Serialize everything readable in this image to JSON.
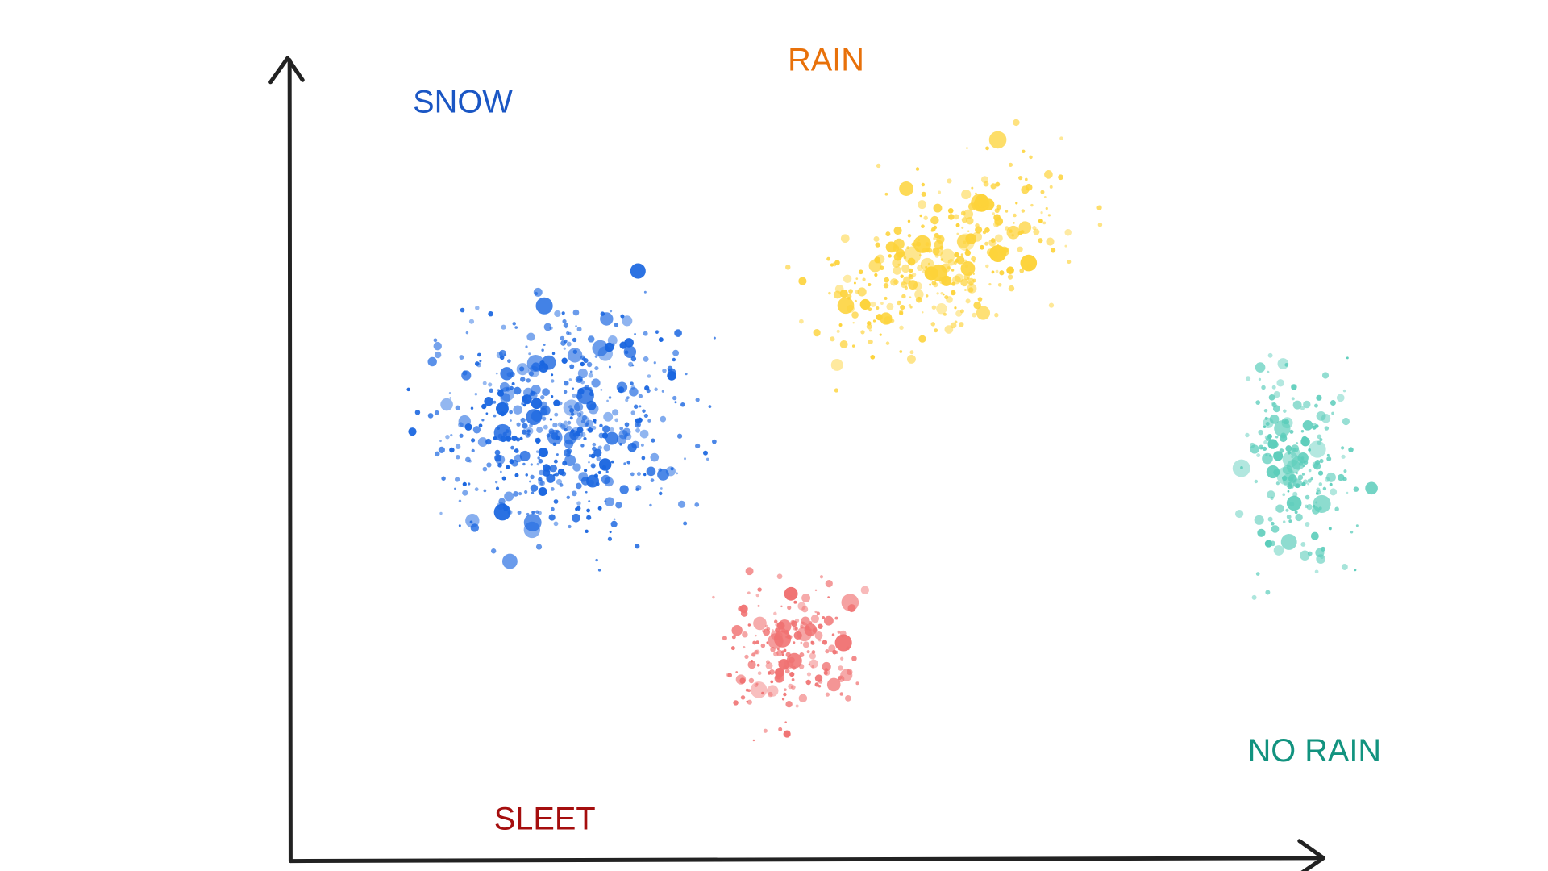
{
  "labels": {
    "snow": "SNOW",
    "rain": "RAIN",
    "no_rain": "NO RAIN",
    "sleet": "SLEET"
  }
}
